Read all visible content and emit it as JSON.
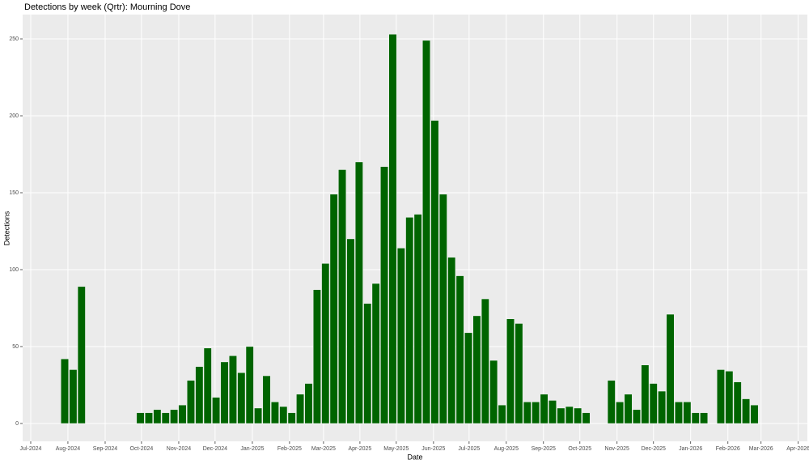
{
  "chart_data": {
    "type": "bar",
    "title": "Detections by week (Qrtr): Mourning Dove",
    "xlabel": "Date",
    "ylabel": "Detections",
    "x": [
      0,
      1,
      2,
      9,
      10,
      11,
      12,
      13,
      14,
      15,
      16,
      17,
      18,
      19,
      20,
      21,
      22,
      23,
      24,
      25,
      26,
      27,
      28,
      29,
      30,
      31,
      32,
      33,
      34,
      35,
      36,
      37,
      38,
      39,
      40,
      41,
      42,
      43,
      44,
      45,
      46,
      47,
      48,
      49,
      50,
      51,
      52,
      53,
      54,
      55,
      56,
      57,
      58,
      59,
      60,
      61,
      62,
      65,
      66,
      67,
      68,
      69,
      70,
      71,
      72,
      73,
      74,
      75,
      76,
      78,
      79,
      80,
      81,
      82
    ],
    "values": [
      42,
      35,
      89,
      7,
      7,
      9,
      7,
      9,
      12,
      28,
      37,
      49,
      17,
      40,
      44,
      33,
      50,
      10,
      31,
      14,
      11,
      7,
      19,
      26,
      87,
      104,
      149,
      165,
      120,
      170,
      78,
      91,
      167,
      253,
      114,
      134,
      136,
      249,
      197,
      149,
      108,
      96,
      59,
      70,
      81,
      41,
      12,
      68,
      65,
      14,
      14,
      19,
      15,
      10,
      11,
      10,
      7,
      28,
      14,
      19,
      9,
      38,
      26,
      21,
      71,
      14,
      14,
      7,
      7,
      35,
      34,
      27,
      16,
      12
    ],
    "color": "#006400",
    "xlim": [
      -5,
      88.3
    ],
    "xticks": [
      {
        "value": -4.04,
        "label": "Jul-2024"
      },
      {
        "value": 0.38,
        "label": "Aug-2024"
      },
      {
        "value": 4.81,
        "label": "Sep-2024"
      },
      {
        "value": 9.13,
        "label": "Oct-2024"
      },
      {
        "value": 13.56,
        "label": "Nov-2024"
      },
      {
        "value": 17.88,
        "label": "Dec-2024"
      },
      {
        "value": 22.31,
        "label": "Jan-2025"
      },
      {
        "value": 26.73,
        "label": "Feb-2025"
      },
      {
        "value": 30.77,
        "label": "Mar-2025"
      },
      {
        "value": 35.1,
        "label": "Apr-2025"
      },
      {
        "value": 39.42,
        "label": "May-2025"
      },
      {
        "value": 43.85,
        "label": "Jun-2025"
      },
      {
        "value": 48.08,
        "label": "Jul-2025"
      },
      {
        "value": 52.5,
        "label": "Aug-2025"
      },
      {
        "value": 56.92,
        "label": "Sep-2025"
      },
      {
        "value": 61.25,
        "label": "Oct-2025"
      },
      {
        "value": 65.67,
        "label": "Nov-2025"
      },
      {
        "value": 70,
        "label": "Dec-2025"
      },
      {
        "value": 74.42,
        "label": "Jan-2026"
      },
      {
        "value": 78.85,
        "label": "Feb-2026"
      },
      {
        "value": 82.79,
        "label": "Mar-2026"
      },
      {
        "value": 87.21,
        "label": "Apr-2026"
      }
    ],
    "ylim": [
      -11.6,
      265.8
    ],
    "yticks": [
      0,
      50,
      100,
      150,
      200,
      250
    ],
    "grid": true
  }
}
